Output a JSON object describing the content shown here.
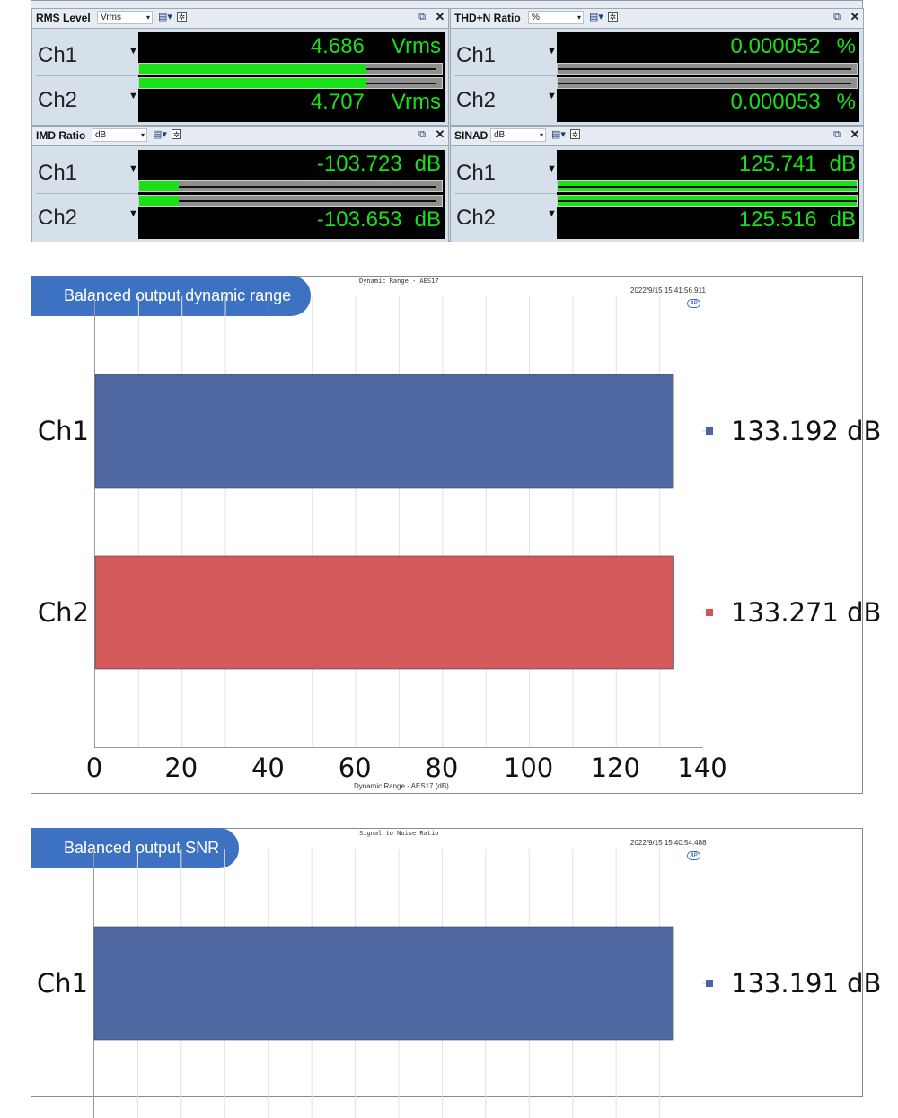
{
  "meters": {
    "panels": [
      {
        "title": "RMS Level",
        "unit": "Vrms",
        "channels": [
          {
            "name": "Ch1",
            "value": "4.686",
            "unit": "Vrms",
            "level": 0.75
          },
          {
            "name": "Ch2",
            "value": "4.707",
            "unit": "Vrms",
            "level": 0.75
          }
        ]
      },
      {
        "title": "THD+N Ratio",
        "unit": "%",
        "channels": [
          {
            "name": "Ch1",
            "value": "0.000052",
            "unit": "%",
            "level": 0.0
          },
          {
            "name": "Ch2",
            "value": "0.000053",
            "unit": "%",
            "level": 0.0
          }
        ]
      },
      {
        "title": "IMD Ratio",
        "unit": "dB",
        "channels": [
          {
            "name": "Ch1",
            "value": "-103.723",
            "unit": "dB",
            "level": 0.13
          },
          {
            "name": "Ch2",
            "value": "-103.653",
            "unit": "dB",
            "level": 0.13
          }
        ]
      },
      {
        "title": "SINAD",
        "unit": "dB",
        "channels": [
          {
            "name": "Ch1",
            "value": "125.741",
            "unit": "dB",
            "level": 1.0
          },
          {
            "name": "Ch2",
            "value": "125.516",
            "unit": "dB",
            "level": 1.0
          }
        ]
      }
    ]
  },
  "colors": {
    "lcd_green": "#19e019",
    "ch1_bar": "#4a64a0",
    "ch2_bar": "#d35555",
    "badge": "#3d72c2"
  },
  "charts": {
    "dynamic": {
      "badge": "Balanced output dynamic range",
      "title": "Dynamic Range - AES17",
      "timestamp": "2022/9/15 15:41:56.911",
      "xlabel": "Dynamic Range - AES17 (dB)"
    },
    "snr": {
      "badge": "Balanced output SNR",
      "title": "Signal to Noise Ratio",
      "timestamp": "2022/9/15 15:40:54.488"
    }
  },
  "chart_data": [
    {
      "type": "bar",
      "orientation": "horizontal",
      "title": "Dynamic Range - AES17",
      "categories": [
        "Ch1",
        "Ch2"
      ],
      "values": [
        133.192,
        133.271
      ],
      "value_labels": [
        "133.192 dB",
        "133.271 dB"
      ],
      "xlabel": "Dynamic Range - AES17 (dB)",
      "xlim": [
        0,
        140
      ],
      "xticks": [
        "0",
        "20",
        "40",
        "60",
        "80",
        "100",
        "120",
        "140"
      ],
      "grid": true
    },
    {
      "type": "bar",
      "orientation": "horizontal",
      "title": "Signal to Noise Ratio",
      "categories": [
        "Ch1"
      ],
      "values": [
        133.191
      ],
      "value_labels": [
        "133.191 dB"
      ],
      "xlim": [
        0,
        140
      ],
      "grid": true
    }
  ]
}
